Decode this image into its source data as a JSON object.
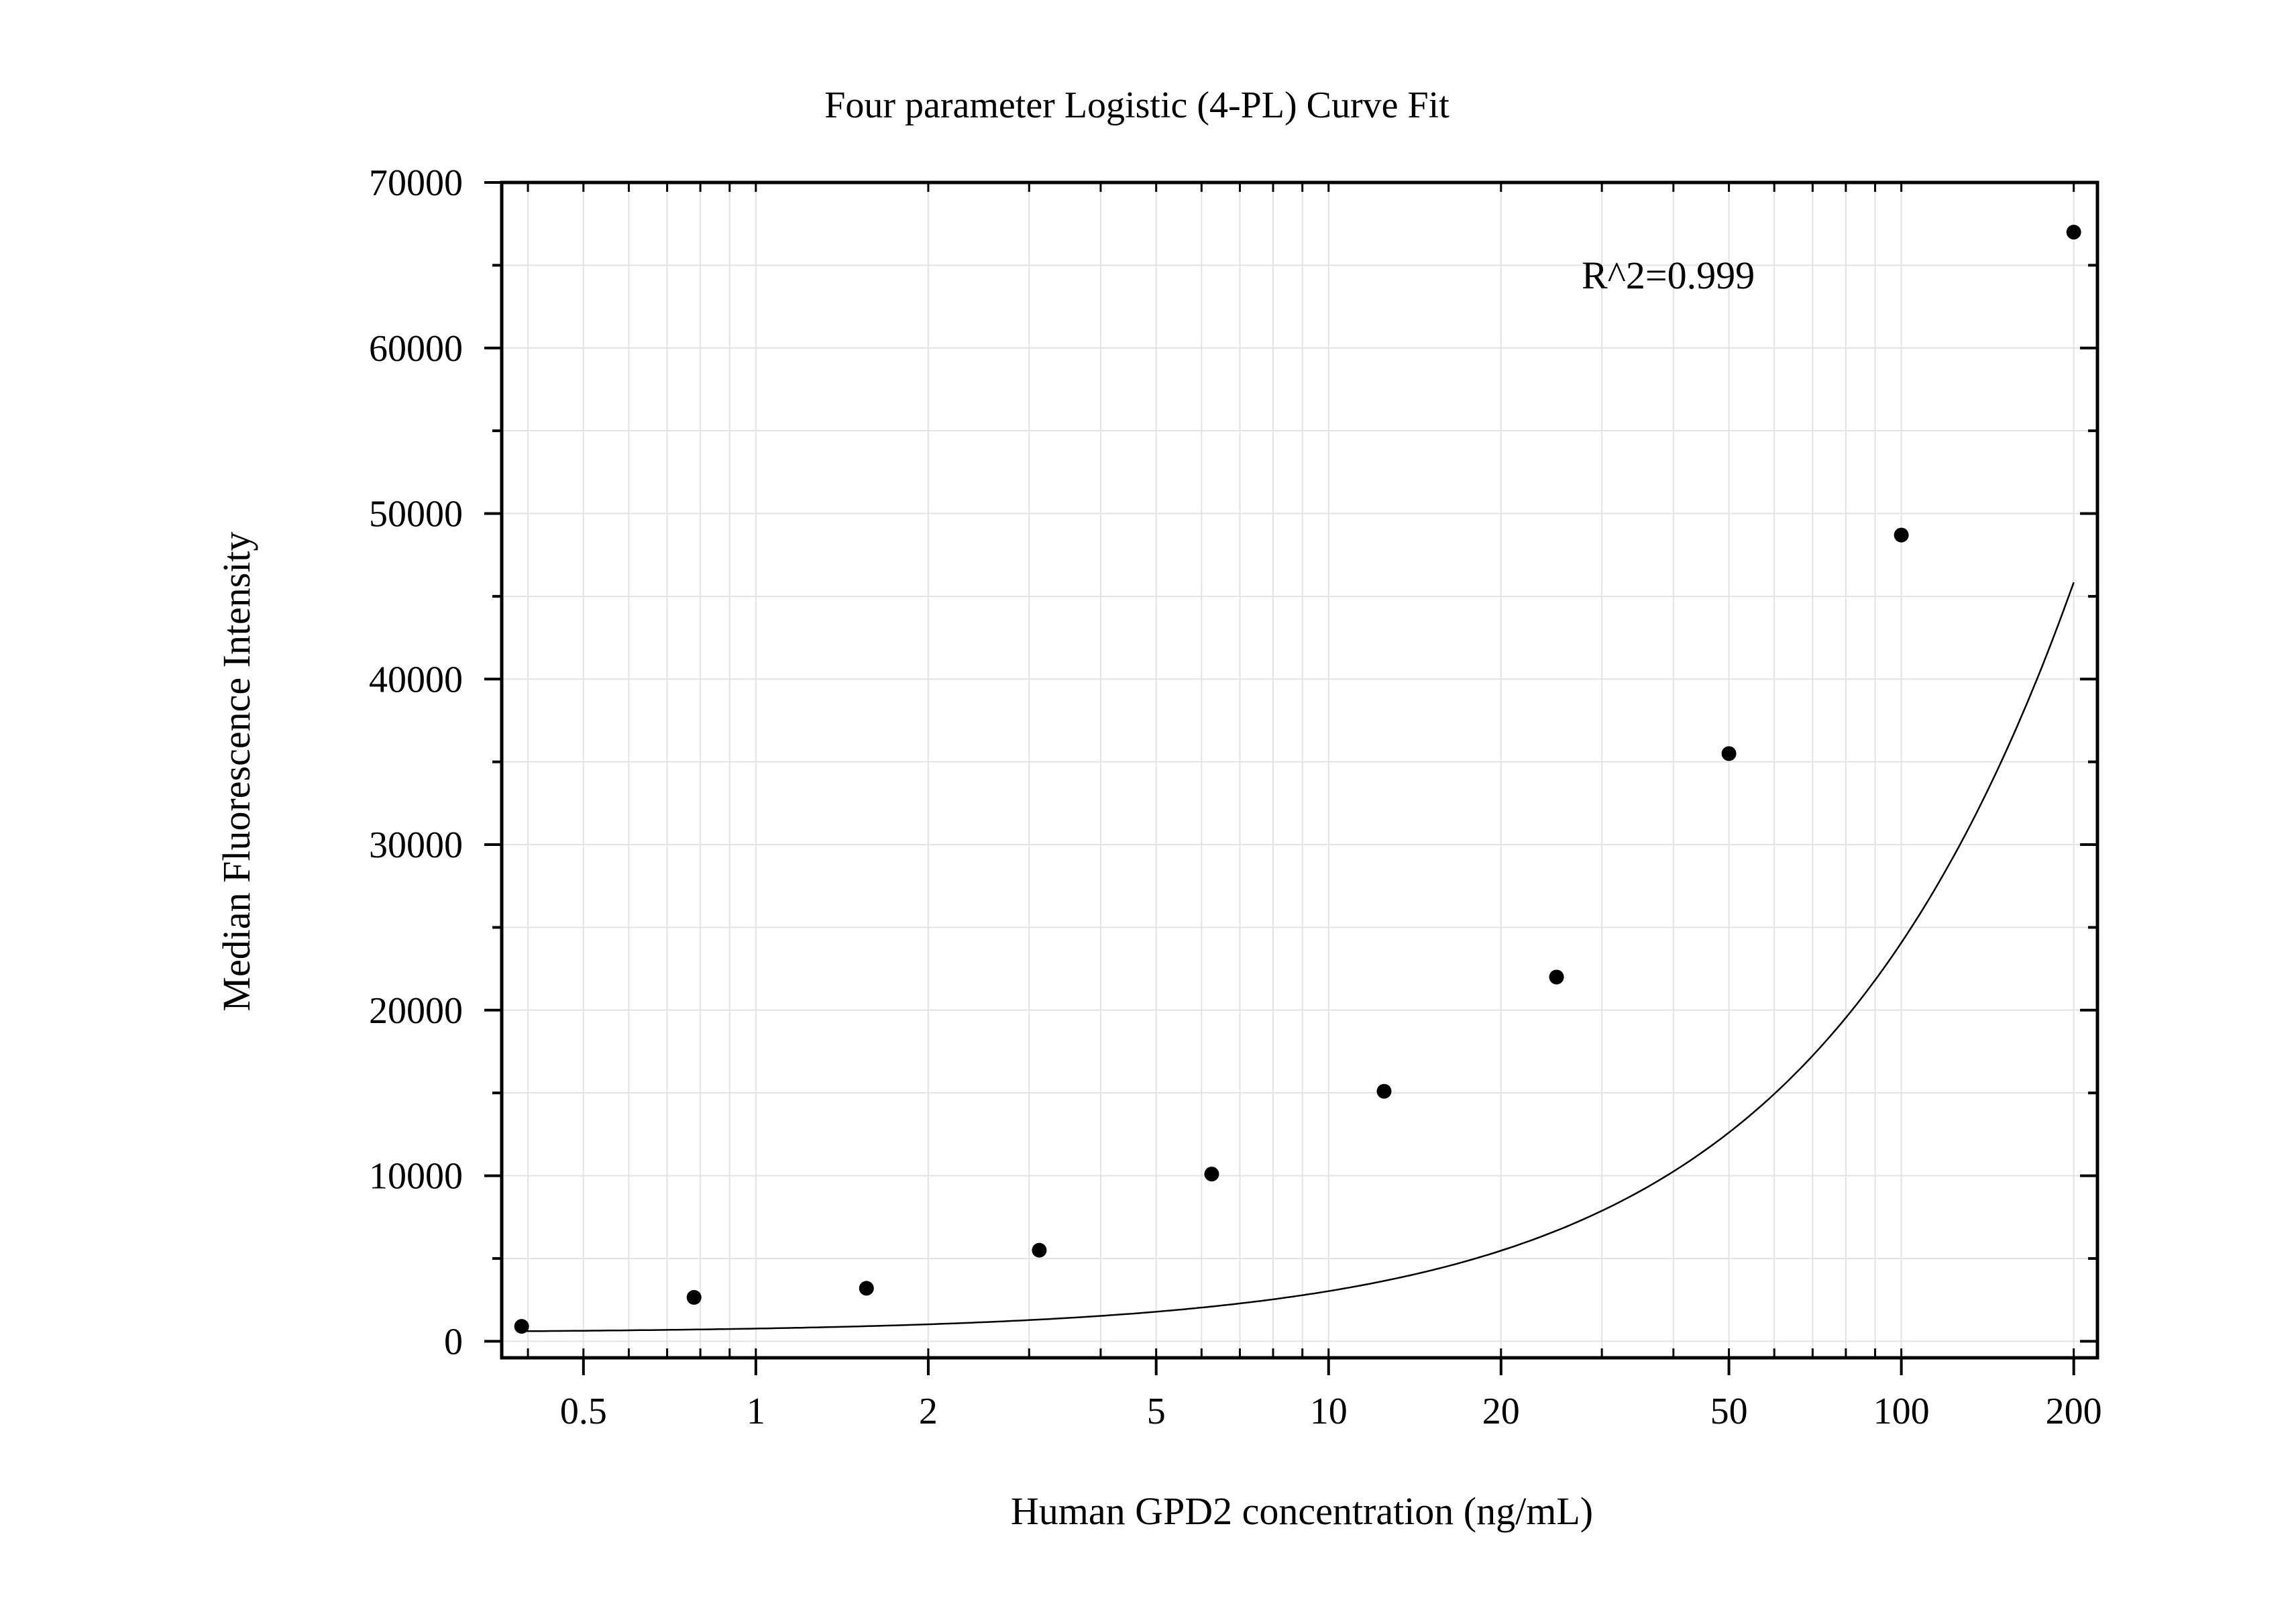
{
  "chart_data": {
    "type": "scatter",
    "title": "Four parameter Logistic (4-PL) Curve Fit",
    "xlabel": "Human GPD2 concentration (ng/mL)",
    "ylabel": "Median Fluorescence Intensity",
    "x_scale": "log",
    "xlim": [
      0.36,
      220
    ],
    "ylim": [
      -1000,
      70000
    ],
    "x_ticks": [
      0.5,
      1,
      2,
      5,
      10,
      20,
      50,
      100,
      200
    ],
    "x_tick_labels": [
      "0.5",
      "1",
      "2",
      "5",
      "10",
      "20",
      "50",
      "100",
      "200"
    ],
    "y_ticks": [
      0,
      10000,
      20000,
      30000,
      40000,
      50000,
      60000,
      70000
    ],
    "y_tick_labels": [
      "0",
      "10000",
      "20000",
      "30000",
      "40000",
      "50000",
      "60000",
      "70000"
    ],
    "grid": true,
    "annotation": "R^2=0.999",
    "series": [
      {
        "kind": "points",
        "x": [
          0.39,
          0.78,
          1.56,
          3.125,
          6.25,
          12.5,
          25,
          50,
          100,
          200
        ],
        "y": [
          900,
          2650,
          3200,
          5500,
          10100,
          15100,
          22000,
          35500,
          48700,
          67000
        ]
      },
      {
        "kind": "fit-curve",
        "model": "4PL",
        "params": {
          "A": 500,
          "B": 0.98,
          "C": 4000,
          "D": 900000
        },
        "x_range": [
          0.39,
          200
        ]
      }
    ],
    "colors": {
      "points": "#000000",
      "curve": "#000000",
      "grid": "#e3e3e3",
      "frame": "#000000"
    }
  }
}
